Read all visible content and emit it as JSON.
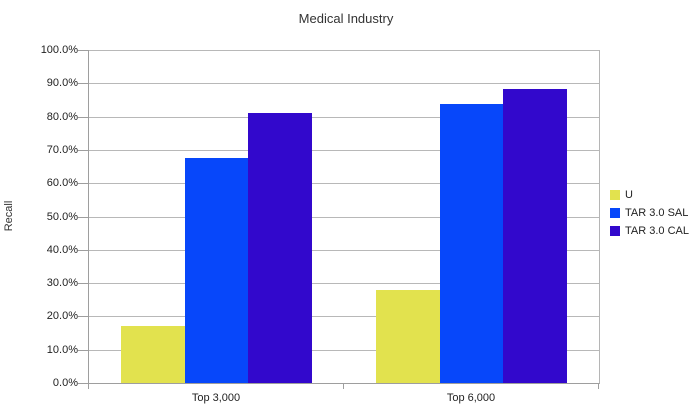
{
  "chart_data": {
    "type": "bar",
    "title": "Medical Industry",
    "xlabel": "",
    "ylabel": "Recall",
    "categories": [
      "Top 3,000",
      "Top 6,000"
    ],
    "series": [
      {
        "name": "U",
        "color": "#e2e24e",
        "values": [
          17.0,
          27.8
        ]
      },
      {
        "name": "TAR 3.0 SAL",
        "color": "#0747fa",
        "values": [
          67.5,
          83.8
        ]
      },
      {
        "name": "TAR 3.0 CAL",
        "color": "#3208cc",
        "values": [
          81.0,
          88.4
        ]
      }
    ],
    "ylim": [
      0,
      100
    ],
    "y_tick_step": 10,
    "y_tick_labels": [
      "100.0%",
      "90.0%",
      "80.0%",
      "70.0%",
      "60.0%",
      "50.0%",
      "40.0%",
      "30.0%",
      "20.0%",
      "10.0%",
      "0.0%"
    ],
    "grid": true,
    "legend_position": "right",
    "colors": {
      "background": "#ffffff",
      "gridline": "#b8b8b8",
      "axis": "#9e9e9e",
      "title_text": "#333333",
      "label_text": "#222222"
    }
  }
}
